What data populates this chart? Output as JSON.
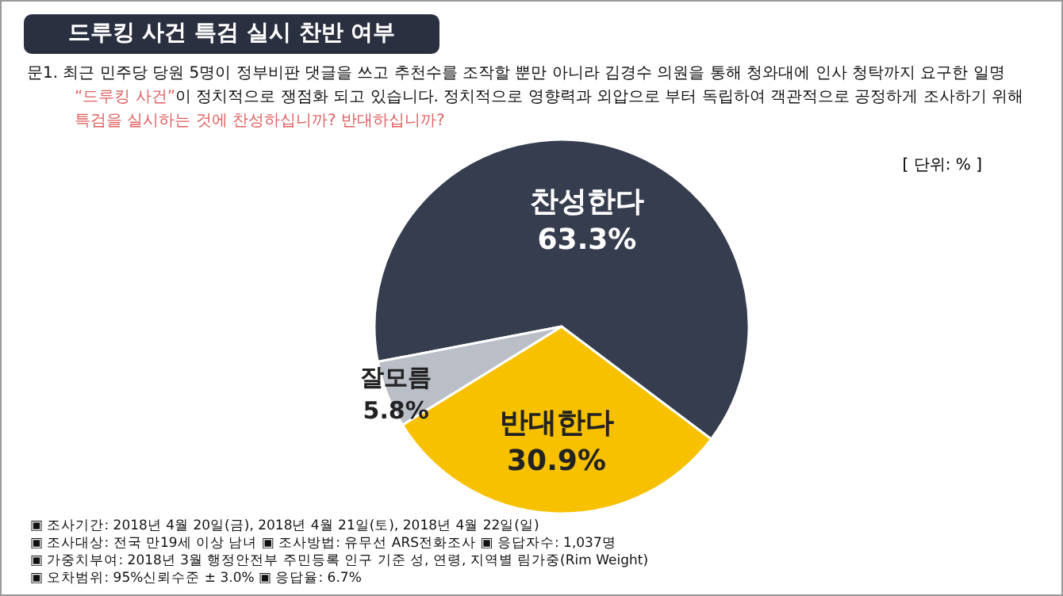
{
  "chart_data": {
    "type": "pie",
    "title": "드루킹 사건 특검 실시 찬반 여부",
    "subtitle": "문1. 최근 민주당 당원 5명이 정부비판 댓글을 쓰고 추천수를 조작할 뿐만 아니라 김경수 의원을 통해 청와대에 인사 청탁까지 요구한 일명 “드루킹 사건”이 정치적으로 쟁점화 되고 있습니다. 정치적으로 영향력과 외압으로 부터 독립하여 객관적으로 공정하게 조사하기 위해 특검을 실시하는 것에 찬성하십니까? 반대하십니까?",
    "categories": [
      "찬성한다",
      "반대한다",
      "잘모름"
    ],
    "values": [
      63.3,
      30.9,
      5.8
    ],
    "colors": [
      "#363d4f",
      "#f7c100",
      "#b9bec7"
    ],
    "value_labels": [
      "63.3%",
      "30.9%",
      "5.8%"
    ],
    "annotations": [
      "[ 단위: % ]",
      "▣ 조사기간: 2018년 4월 20일(금), 2018년 4월 21일(토), 2018년 4월 22일(일)",
      "▣ 조사대상: 전국 만19세 이상 남녀 ▣ 조사방법: 유무선 ARS전화조사 ▣ 응답자수: 1,037명",
      "▣ 가중치부여: 2018년 3월 행정안전부 주민등록 인구 기준 성, 연령, 지역별 림가중(Rim Weight)",
      "▣ 오차범위: 95%신뢰수준 ± 3.0% ▣ 응답율: 6.7%"
    ]
  }
}
